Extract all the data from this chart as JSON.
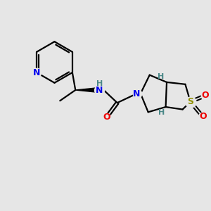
{
  "background_color": "#e6e6e6",
  "line_color": "#000000",
  "line_width": 1.6,
  "N_color": "#0000ee",
  "O_color": "#ee0000",
  "S_color": "#909000",
  "H_color": "#4a8888",
  "figsize": [
    3.0,
    3.0
  ],
  "dpi": 100,
  "xlim": [
    0,
    10
  ],
  "ylim": [
    0,
    10
  ]
}
